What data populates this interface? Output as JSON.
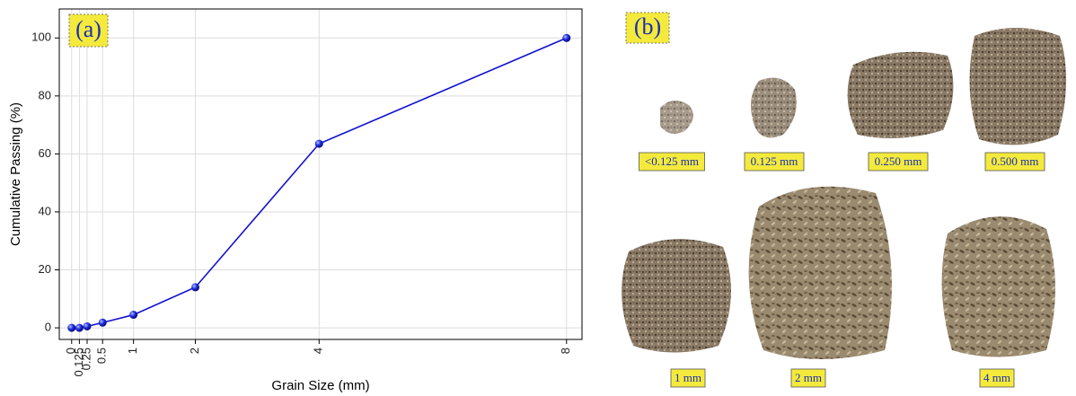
{
  "chart_data": {
    "type": "line",
    "annotation": "(a)",
    "x_label": "Grain Size (mm)",
    "y_label": "Cumulative Passing (%)",
    "x": [
      0,
      0.125,
      0.25,
      0.5,
      1,
      2,
      4,
      8
    ],
    "values": [
      0,
      0,
      0.5,
      1.8,
      4.5,
      14,
      63.5,
      100
    ],
    "color": "#1010d0",
    "xlim": [
      -0.2,
      8.25
    ],
    "xticks": [
      0,
      0.125,
      0.25,
      0.5,
      1,
      2,
      4,
      8
    ],
    "ylim": [
      -4,
      110
    ],
    "yticks": [
      0,
      20,
      40,
      60,
      80,
      100
    ],
    "grid": true
  },
  "panel_b": {
    "annotation": "(b)",
    "samples": [
      "<0.125 mm",
      "0.125 mm",
      "0.250 mm",
      "0.500 mm",
      "1 mm",
      "2 mm",
      "4 mm"
    ]
  }
}
